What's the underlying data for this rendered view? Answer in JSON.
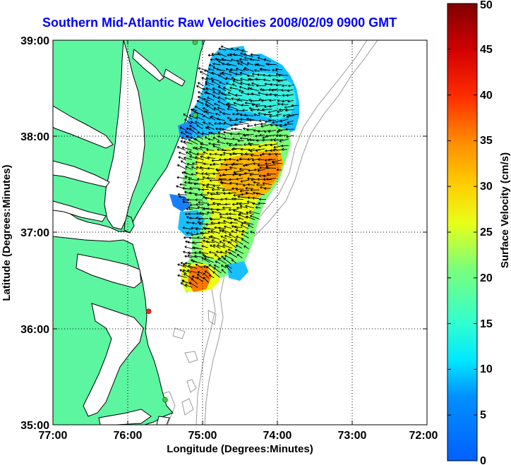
{
  "title": "Southern Mid-Atlantic Raw Velocities 2008/02/09 0900 GMT",
  "map": {
    "x_label": "Longitude (Degrees:Minutes)",
    "y_label": "Latitude (Degrees:Minutes)",
    "x_ticks": [
      "77:00",
      "76:00",
      "75:00",
      "74:00",
      "73:00",
      "72:00"
    ],
    "y_ticks": [
      "39:00",
      "38:00",
      "37:00",
      "36:00",
      "35:00"
    ],
    "lon_range": [
      -77,
      -72
    ],
    "lat_range": [
      35,
      39
    ],
    "grid": "dotted",
    "colors": {
      "land": "#5cf5a0",
      "water": "#ffffff",
      "coastline": "#000000",
      "bathymetry": "#9a9a9a"
    },
    "stations": [
      {
        "lon": -75.1,
        "lat": 38.98,
        "color": "#3dcc3d"
      },
      {
        "lon": -75.1,
        "lat": 38.22,
        "color": "#3dcc3d"
      },
      {
        "lon": -75.72,
        "lat": 36.18,
        "color": "#ff2020"
      },
      {
        "lon": -75.5,
        "lat": 35.26,
        "color": "#3dcc3d"
      }
    ]
  },
  "colorbar": {
    "label": "Surface Velocity (cm/s)",
    "ticks": [
      "0",
      "5",
      "10",
      "15",
      "20",
      "25",
      "30",
      "35",
      "40",
      "45",
      "50"
    ],
    "range": [
      0,
      50
    ],
    "colormap": "jet"
  }
}
